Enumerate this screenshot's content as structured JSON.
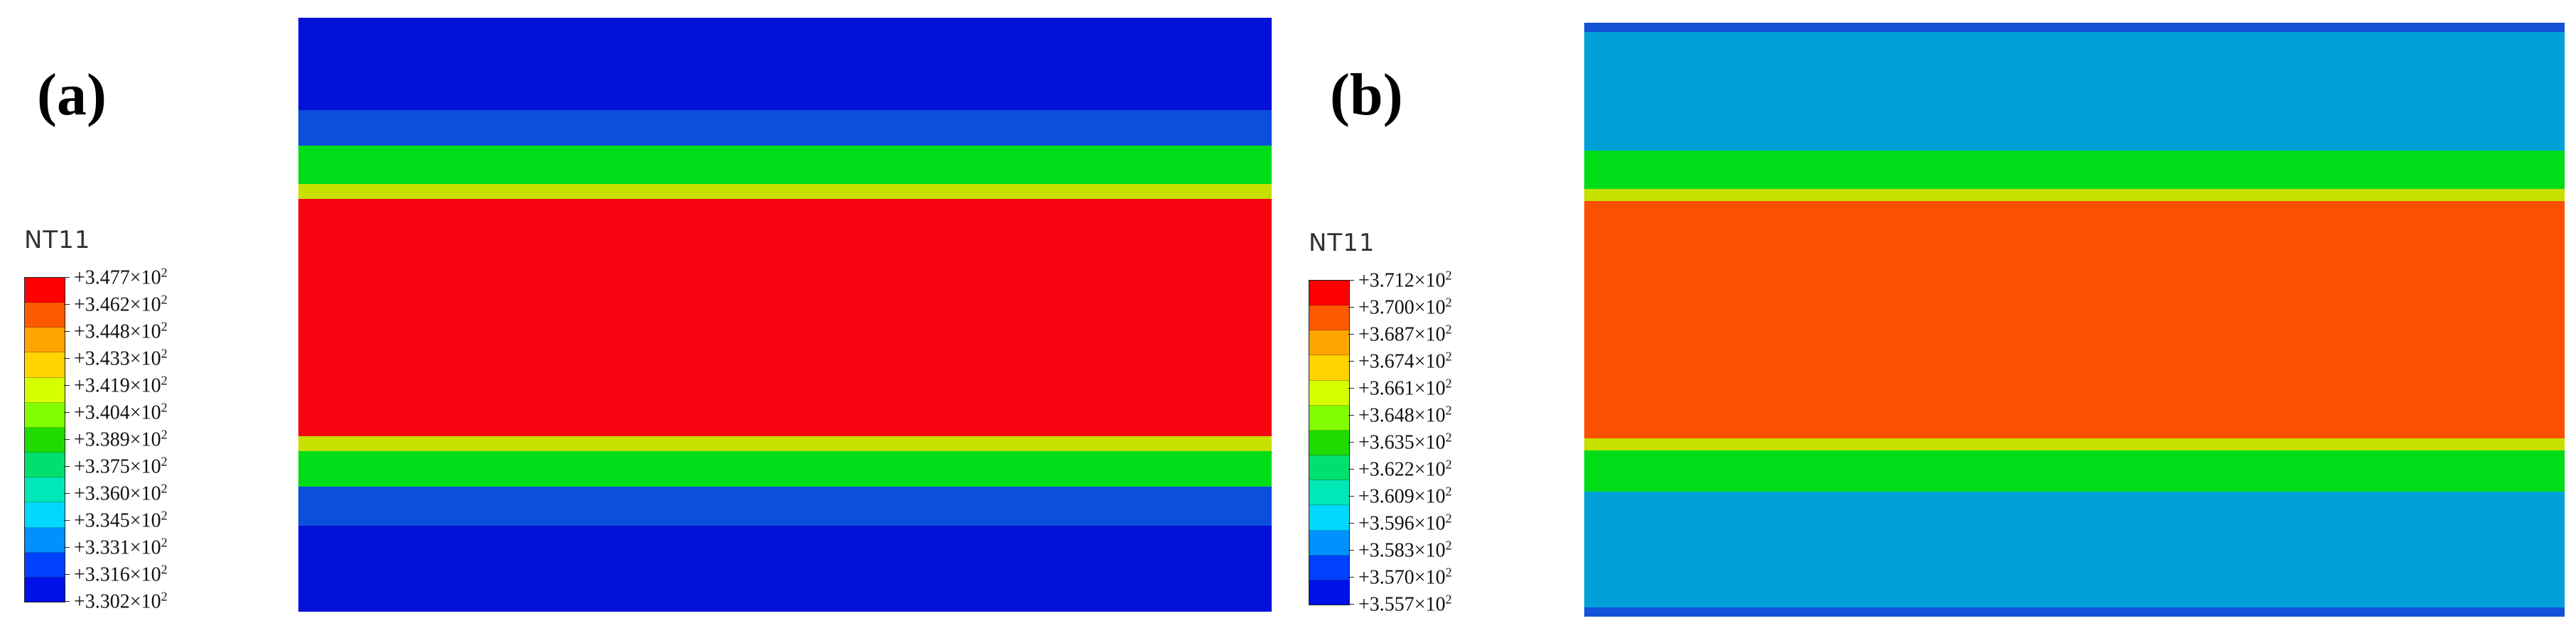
{
  "panels": [
    {
      "label": "(a)",
      "legend_title": "NT11",
      "ticks": [
        "+3.477",
        "+3.462",
        "+3.448",
        "+3.433",
        "+3.419",
        "+3.404",
        "+3.389",
        "+3.375",
        "+3.360",
        "+3.345",
        "+3.331",
        "+3.316",
        "+3.302"
      ],
      "exponent_text": "×10",
      "exponent_power": "2",
      "colors": [
        "#ff0000",
        "#ff5a00",
        "#ffa500",
        "#ffd400",
        "#d8ff00",
        "#7fff00",
        "#1fdc00",
        "#00e070",
        "#00e8b8",
        "#00d8ff",
        "#0090ff",
        "#0040ff",
        "#0010e8"
      ],
      "bands": [
        {
          "color": "#0412d9",
          "weight": 15.5
        },
        {
          "color": "#0b4fdc",
          "weight": 6
        },
        {
          "color": "#00dd18",
          "weight": 6.5
        },
        {
          "color": "#c8e000",
          "weight": 2.5
        },
        {
          "color": "#f90511",
          "weight": 40
        },
        {
          "color": "#c8e000",
          "weight": 2.5
        },
        {
          "color": "#00dd18",
          "weight": 6
        },
        {
          "color": "#0b4fdc",
          "weight": 6.5
        },
        {
          "color": "#0412d9",
          "weight": 14.5
        }
      ]
    },
    {
      "label": "(b)",
      "legend_title": "NT11",
      "ticks": [
        "+3.712",
        "+3.700",
        "+3.687",
        "+3.674",
        "+3.661",
        "+3.648",
        "+3.635",
        "+3.622",
        "+3.609",
        "+3.596",
        "+3.583",
        "+3.570",
        "+3.557"
      ],
      "exponent_text": "×10",
      "exponent_power": "2",
      "colors": [
        "#ff0000",
        "#ff5a00",
        "#ffa500",
        "#ffd400",
        "#d8ff00",
        "#7fff00",
        "#1fdc00",
        "#00e070",
        "#00e8b8",
        "#00d8ff",
        "#0090ff",
        "#0040ff",
        "#0010e8"
      ],
      "bands": [
        {
          "color": "#1452d8",
          "weight": 1.5
        },
        {
          "color": "#00a0d8",
          "weight": 20
        },
        {
          "color": "#00dd18",
          "weight": 6.5
        },
        {
          "color": "#c8e000",
          "weight": 2
        },
        {
          "color": "#fa5000",
          "weight": 40
        },
        {
          "color": "#c8e000",
          "weight": 2
        },
        {
          "color": "#00dd18",
          "weight": 7
        },
        {
          "color": "#00a0d8",
          "weight": 19.5
        },
        {
          "color": "#1452d8",
          "weight": 1.5
        }
      ]
    }
  ]
}
